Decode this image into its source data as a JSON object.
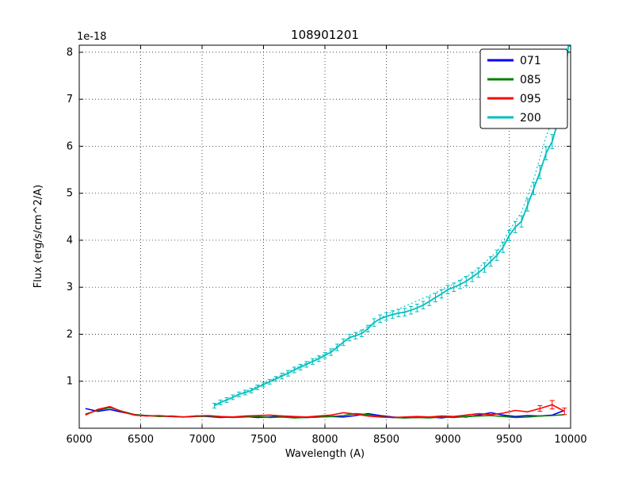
{
  "chart_data": {
    "type": "line",
    "title": "108901201",
    "xlabel": "Wavelength (A)",
    "ylabel": "Flux (erg/s/cm^2/A)",
    "y_offset_label": "1e-18",
    "xlim": [
      6000,
      10000
    ],
    "ylim": [
      0,
      8.15
    ],
    "xticks": [
      6000,
      6500,
      7000,
      7500,
      8000,
      8500,
      9000,
      9500,
      10000
    ],
    "yticks": [
      1,
      2,
      3,
      4,
      5,
      6,
      7,
      8
    ],
    "grid": {
      "on": true,
      "style": "dotted",
      "color": "#000000"
    },
    "legend": {
      "position": "upper right",
      "entries": [
        {
          "label": "071",
          "color": "#0000ff"
        },
        {
          "label": "085",
          "color": "#008000"
        },
        {
          "label": "095",
          "color": "#ff0000"
        },
        {
          "label": "200",
          "color": "#00bfbf"
        }
      ]
    },
    "flat_x_start": 6050,
    "flat_x_step": 100,
    "series": [
      {
        "name": "071",
        "color": "#0000ff",
        "style": "solid",
        "values": [
          0.42,
          0.36,
          0.4,
          0.34,
          0.29,
          0.27,
          0.26,
          0.25,
          0.24,
          0.26,
          0.25,
          0.23,
          0.24,
          0.25,
          0.23,
          0.24,
          0.26,
          0.24,
          0.23,
          0.24,
          0.25,
          0.24,
          0.27,
          0.31,
          0.27,
          0.24,
          0.22,
          0.23,
          0.24,
          0.22,
          0.25,
          0.24,
          0.28,
          0.33,
          0.28,
          0.25,
          0.27,
          0.26,
          0.28,
          0.38
        ]
      },
      {
        "name": "085",
        "color": "#008000",
        "style": "solid",
        "values": [
          0.3,
          0.38,
          0.44,
          0.36,
          0.29,
          0.27,
          0.25,
          0.26,
          0.24,
          0.25,
          0.26,
          0.24,
          0.23,
          0.24,
          0.25,
          0.23,
          0.24,
          0.22,
          0.23,
          0.24,
          0.25,
          0.27,
          0.31,
          0.29,
          0.25,
          0.23,
          0.22,
          0.23,
          0.22,
          0.24,
          0.23,
          0.25,
          0.26,
          0.27,
          0.25,
          0.23,
          0.24,
          0.26,
          0.27,
          0.29
        ]
      },
      {
        "name": "095",
        "color": "#ff0000",
        "style": "solid",
        "values": [
          0.28,
          0.4,
          0.46,
          0.35,
          0.28,
          0.26,
          0.27,
          0.25,
          0.24,
          0.26,
          0.27,
          0.25,
          0.24,
          0.26,
          0.27,
          0.28,
          0.26,
          0.25,
          0.24,
          0.26,
          0.28,
          0.33,
          0.3,
          0.26,
          0.24,
          0.23,
          0.24,
          0.25,
          0.24,
          0.26,
          0.25,
          0.28,
          0.31,
          0.29,
          0.32,
          0.38,
          0.35,
          0.42,
          0.5,
          0.36
        ]
      }
    ],
    "red_errorbars": [
      [
        9750,
        0.42,
        0.06
      ],
      [
        9850,
        0.5,
        0.09
      ],
      [
        9950,
        0.36,
        0.07
      ]
    ],
    "cyan_solid": {
      "name": "200",
      "color": "#00bfbf",
      "style": "solid",
      "points": [
        [
          7100,
          0.48,
          0.05
        ],
        [
          7150,
          0.55,
          0.05
        ],
        [
          7200,
          0.6,
          0.05
        ],
        [
          7250,
          0.66,
          0.05
        ],
        [
          7300,
          0.72,
          0.05
        ],
        [
          7350,
          0.76,
          0.05
        ],
        [
          7400,
          0.8,
          0.05
        ],
        [
          7450,
          0.87,
          0.05
        ],
        [
          7500,
          0.93,
          0.05
        ],
        [
          7550,
          0.99,
          0.05
        ],
        [
          7600,
          1.05,
          0.05
        ],
        [
          7650,
          1.11,
          0.06
        ],
        [
          7700,
          1.17,
          0.06
        ],
        [
          7750,
          1.24,
          0.06
        ],
        [
          7800,
          1.3,
          0.06
        ],
        [
          7850,
          1.36,
          0.06
        ],
        [
          7900,
          1.42,
          0.06
        ],
        [
          7950,
          1.48,
          0.06
        ],
        [
          8000,
          1.55,
          0.06
        ],
        [
          8050,
          1.62,
          0.07
        ],
        [
          8100,
          1.72,
          0.07
        ],
        [
          8150,
          1.83,
          0.07
        ],
        [
          8200,
          1.93,
          0.07
        ],
        [
          8250,
          1.97,
          0.07
        ],
        [
          8300,
          2.02,
          0.07
        ],
        [
          8350,
          2.12,
          0.07
        ],
        [
          8400,
          2.25,
          0.08
        ],
        [
          8450,
          2.33,
          0.08
        ],
        [
          8500,
          2.38,
          0.08
        ],
        [
          8550,
          2.42,
          0.08
        ],
        [
          8600,
          2.45,
          0.08
        ],
        [
          8650,
          2.47,
          0.08
        ],
        [
          8700,
          2.51,
          0.08
        ],
        [
          8750,
          2.56,
          0.08
        ],
        [
          8800,
          2.62,
          0.08
        ],
        [
          8850,
          2.7,
          0.09
        ],
        [
          8900,
          2.78,
          0.09
        ],
        [
          8950,
          2.86,
          0.09
        ],
        [
          9000,
          2.95,
          0.09
        ],
        [
          9050,
          3.0,
          0.09
        ],
        [
          9100,
          3.06,
          0.09
        ],
        [
          9150,
          3.13,
          0.1
        ],
        [
          9200,
          3.22,
          0.1
        ],
        [
          9250,
          3.31,
          0.1
        ],
        [
          9300,
          3.42,
          0.1
        ],
        [
          9350,
          3.55,
          0.1
        ],
        [
          9400,
          3.68,
          0.11
        ],
        [
          9450,
          3.85,
          0.11
        ],
        [
          9500,
          4.1,
          0.11
        ],
        [
          9550,
          4.28,
          0.12
        ],
        [
          9600,
          4.4,
          0.12
        ],
        [
          9650,
          4.75,
          0.13
        ],
        [
          9700,
          5.1,
          0.13
        ],
        [
          9750,
          5.45,
          0.14
        ],
        [
          9800,
          5.85,
          0.14
        ],
        [
          9850,
          6.1,
          0.15
        ],
        [
          9900,
          6.55,
          0.15
        ],
        [
          9950,
          7.4,
          0.16
        ],
        [
          9990,
          8.3,
          0.17
        ]
      ]
    },
    "cyan_dotted": {
      "name": "200-dotted",
      "color": "#00bfbf",
      "style": "dotted",
      "points": [
        [
          7100,
          0.5
        ],
        [
          7500,
          0.95
        ],
        [
          8000,
          1.58
        ],
        [
          8500,
          2.42
        ],
        [
          9000,
          3.0
        ],
        [
          9200,
          3.3
        ],
        [
          9400,
          3.75
        ],
        [
          9500,
          4.2
        ],
        [
          9600,
          4.6
        ],
        [
          9700,
          5.3
        ],
        [
          9800,
          6.2
        ],
        [
          9900,
          6.9
        ],
        [
          9950,
          7.8
        ],
        [
          9990,
          8.45
        ]
      ]
    }
  }
}
